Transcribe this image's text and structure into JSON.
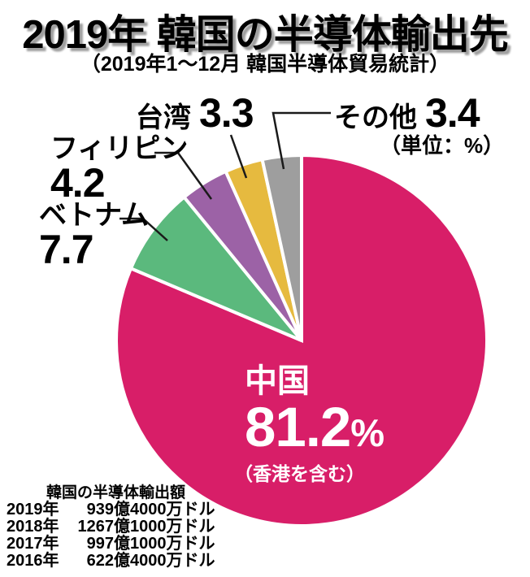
{
  "chart_data": {
    "type": "pie",
    "title": "2019年 韓国の半導体輸出先",
    "subtitle": "（2019年1～12月 韓国半導体貿易統計）",
    "unit_note": "（単位：%）",
    "percent_sign": "%",
    "direction": "clockwise",
    "start_angle_deg": 0,
    "slices": [
      {
        "id": "china",
        "label": "中国",
        "value": 81.2,
        "note": "（香港を含む）",
        "color": "#d81e68"
      },
      {
        "id": "vietnam",
        "label": "ベトナム",
        "value": 7.7,
        "color": "#5bb97d"
      },
      {
        "id": "philippines",
        "label": "フィリピン",
        "value": 4.2,
        "color": "#9c62a6"
      },
      {
        "id": "taiwan",
        "label": "台湾",
        "value": 3.3,
        "color": "#e6ba3f"
      },
      {
        "id": "others",
        "label": "その他",
        "value": 3.4,
        "color": "#9e9e9e"
      }
    ],
    "table": {
      "title": "韓国の半導体輸出額",
      "rows": [
        {
          "year": "2019年",
          "amount": "939億4000万ドル"
        },
        {
          "year": "2018年",
          "amount": "1267億1000万ドル"
        },
        {
          "year": "2017年",
          "amount": "997億1000万ドル"
        },
        {
          "year": "2016年",
          "amount": "622億4000万ドル"
        }
      ]
    }
  }
}
